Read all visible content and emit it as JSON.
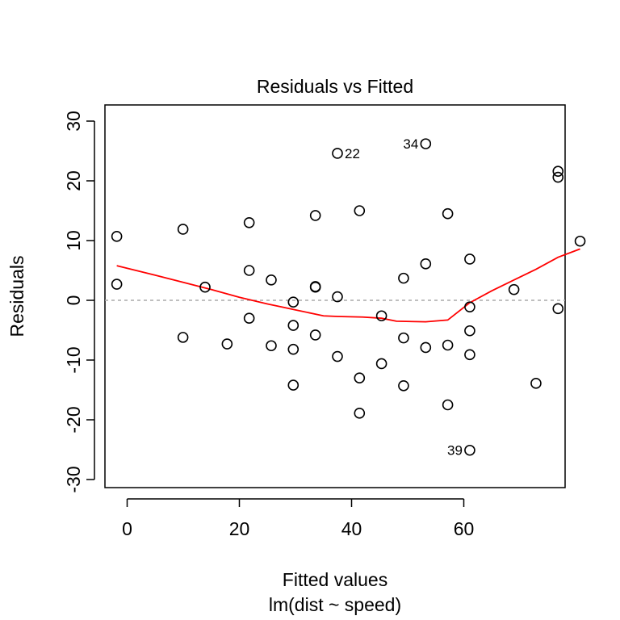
{
  "chart_data": {
    "type": "scatter",
    "title": "Residuals vs Fitted",
    "xlabel": "Fitted values",
    "subtitle": "lm(dist ~ speed)",
    "ylabel": "Residuals",
    "xlim": [
      -2,
      80
    ],
    "ylim": [
      -32,
      32
    ],
    "xticks": [
      0,
      20,
      40,
      60
    ],
    "yticks": [
      -30,
      -20,
      -10,
      0,
      10,
      20,
      30
    ],
    "reference_line": {
      "y": 0,
      "color": "#aaaaaa",
      "style": "dashed"
    },
    "points": [
      [
        -1.85,
        2.7
      ],
      [
        -1.85,
        10.7
      ],
      [
        9.95,
        -6.2
      ],
      [
        9.95,
        11.9
      ],
      [
        13.89,
        2.2
      ],
      [
        17.82,
        -7.3
      ],
      [
        21.75,
        13.0
      ],
      [
        21.75,
        5.0
      ],
      [
        21.75,
        -3.0
      ],
      [
        25.68,
        3.4
      ],
      [
        25.68,
        -7.6
      ],
      [
        29.61,
        -0.3
      ],
      [
        29.61,
        -4.2
      ],
      [
        29.61,
        -8.2
      ],
      [
        29.61,
        -14.2
      ],
      [
        33.55,
        2.3
      ],
      [
        33.55,
        14.2
      ],
      [
        33.55,
        -5.8
      ],
      [
        33.55,
        2.2
      ],
      [
        37.48,
        24.6
      ],
      [
        37.48,
        0.6
      ],
      [
        37.48,
        -9.4
      ],
      [
        41.41,
        15.0
      ],
      [
        41.41,
        -13.0
      ],
      [
        41.41,
        -18.9
      ],
      [
        45.34,
        -2.6
      ],
      [
        45.34,
        -10.6
      ],
      [
        49.27,
        3.7
      ],
      [
        49.27,
        -6.3
      ],
      [
        49.27,
        -14.3
      ],
      [
        53.21,
        26.2
      ],
      [
        53.21,
        6.1
      ],
      [
        53.21,
        -7.9
      ],
      [
        57.14,
        14.5
      ],
      [
        57.14,
        -7.5
      ],
      [
        57.14,
        -17.5
      ],
      [
        61.07,
        6.9
      ],
      [
        61.07,
        -1.1
      ],
      [
        61.07,
        -25.1
      ],
      [
        61.07,
        -5.1
      ],
      [
        61.07,
        -9.1
      ],
      [
        68.94,
        1.8
      ],
      [
        72.87,
        -13.9
      ],
      [
        76.8,
        21.6
      ],
      [
        76.8,
        20.6
      ],
      [
        76.8,
        -1.4
      ],
      [
        80.73,
        9.9
      ]
    ],
    "labeled_points": [
      {
        "label": "22",
        "x": 37.48,
        "y": 24.6,
        "side": "right"
      },
      {
        "label": "34",
        "x": 53.21,
        "y": 26.2,
        "side": "left"
      },
      {
        "label": "39",
        "x": 61.07,
        "y": -25.1,
        "side": "left"
      }
    ],
    "smooth_line": {
      "color": "#ff0000",
      "points": [
        [
          -1.85,
          5.8
        ],
        [
          5,
          4.2
        ],
        [
          10,
          3.0
        ],
        [
          15,
          1.8
        ],
        [
          20,
          0.5
        ],
        [
          25,
          -0.6
        ],
        [
          30,
          -1.6
        ],
        [
          35,
          -2.6
        ],
        [
          37.5,
          -2.7
        ],
        [
          42,
          -2.8
        ],
        [
          45.34,
          -3.0
        ],
        [
          48,
          -3.5
        ],
        [
          53.21,
          -3.6
        ],
        [
          57.14,
          -3.3
        ],
        [
          61.07,
          -0.4
        ],
        [
          65,
          1.6
        ],
        [
          68.94,
          3.4
        ],
        [
          72.87,
          5.2
        ],
        [
          76.8,
          7.2
        ],
        [
          80.73,
          8.6
        ]
      ]
    }
  }
}
